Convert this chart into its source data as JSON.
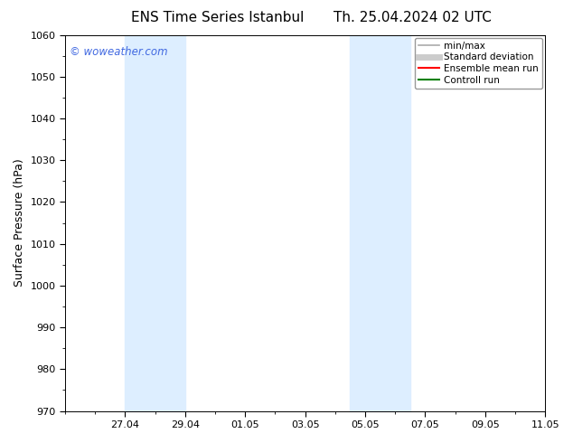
{
  "title_left": "ENS Time Series Istanbul",
  "title_right": "Th. 25.04.2024 02 UTC",
  "ylabel": "Surface Pressure (hPa)",
  "ylim": [
    970,
    1060
  ],
  "yticks": [
    970,
    980,
    990,
    1000,
    1010,
    1020,
    1030,
    1040,
    1050,
    1060
  ],
  "xlim": [
    0,
    16
  ],
  "xtick_labels": [
    "27.04",
    "29.04",
    "01.05",
    "03.05",
    "05.05",
    "07.05",
    "09.05",
    "11.05"
  ],
  "xtick_positions": [
    2,
    4,
    6,
    8,
    10,
    12,
    14,
    16
  ],
  "shade_bands": [
    {
      "x_start": 2,
      "x_end": 4,
      "color": "#ddeeff"
    },
    {
      "x_start": 9.5,
      "x_end": 11.5,
      "color": "#ddeeff"
    }
  ],
  "watermark_text": "© woweather.com",
  "watermark_color": "#4169E1",
  "background_color": "#ffffff",
  "plot_bg_color": "#ffffff",
  "legend_entries": [
    {
      "label": "min/max",
      "color": "#aaaaaa",
      "lw": 1.2
    },
    {
      "label": "Standard deviation",
      "color": "#cccccc",
      "lw": 5
    },
    {
      "label": "Ensemble mean run",
      "color": "#ff0000",
      "lw": 1.5
    },
    {
      "label": "Controll run",
      "color": "#008000",
      "lw": 1.5
    }
  ],
  "title_fontsize": 11,
  "tick_fontsize": 8,
  "ylabel_fontsize": 9,
  "legend_fontsize": 7.5
}
